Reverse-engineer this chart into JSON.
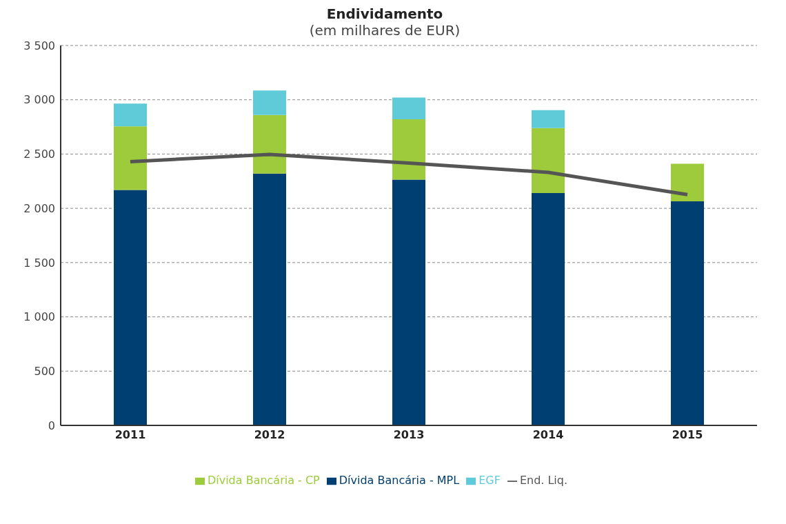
{
  "chart_data": {
    "type": "bar",
    "title": "Endividamento",
    "subtitle": "(em milhares de EUR)",
    "categories": [
      "2011",
      "2012",
      "2013",
      "2014",
      "2015"
    ],
    "stacked": true,
    "series": [
      {
        "name": "Dívida Bancária - MPL",
        "color": "#003f72",
        "values": [
          2170,
          2320,
          2265,
          2140,
          2065
        ]
      },
      {
        "name": "Dívida Bancária - CP",
        "color": "#9dcb3b",
        "values": [
          585,
          540,
          555,
          600,
          345
        ]
      },
      {
        "name": "EGF",
        "color": "#5fcbd8",
        "values": [
          210,
          225,
          200,
          165,
          null
        ]
      },
      {
        "name": "End. Liq.",
        "type": "line",
        "color": "#555555",
        "values": [
          2430,
          2497,
          2417,
          2331,
          2126
        ]
      }
    ],
    "ylim": [
      0,
      3500
    ],
    "yticks": [
      0,
      500,
      {
        "value": 1000,
        "label": "1 000"
      },
      {
        "value": 1500,
        "label": "1 500"
      },
      {
        "value": 2000,
        "label": "2 000"
      },
      {
        "value": 2500,
        "label": "2 500"
      },
      {
        "value": 3000,
        "label": "3 000"
      },
      {
        "value": 3500,
        "label": "3 500"
      }
    ],
    "grid": "y",
    "legend": "bottom",
    "marker": "none"
  }
}
